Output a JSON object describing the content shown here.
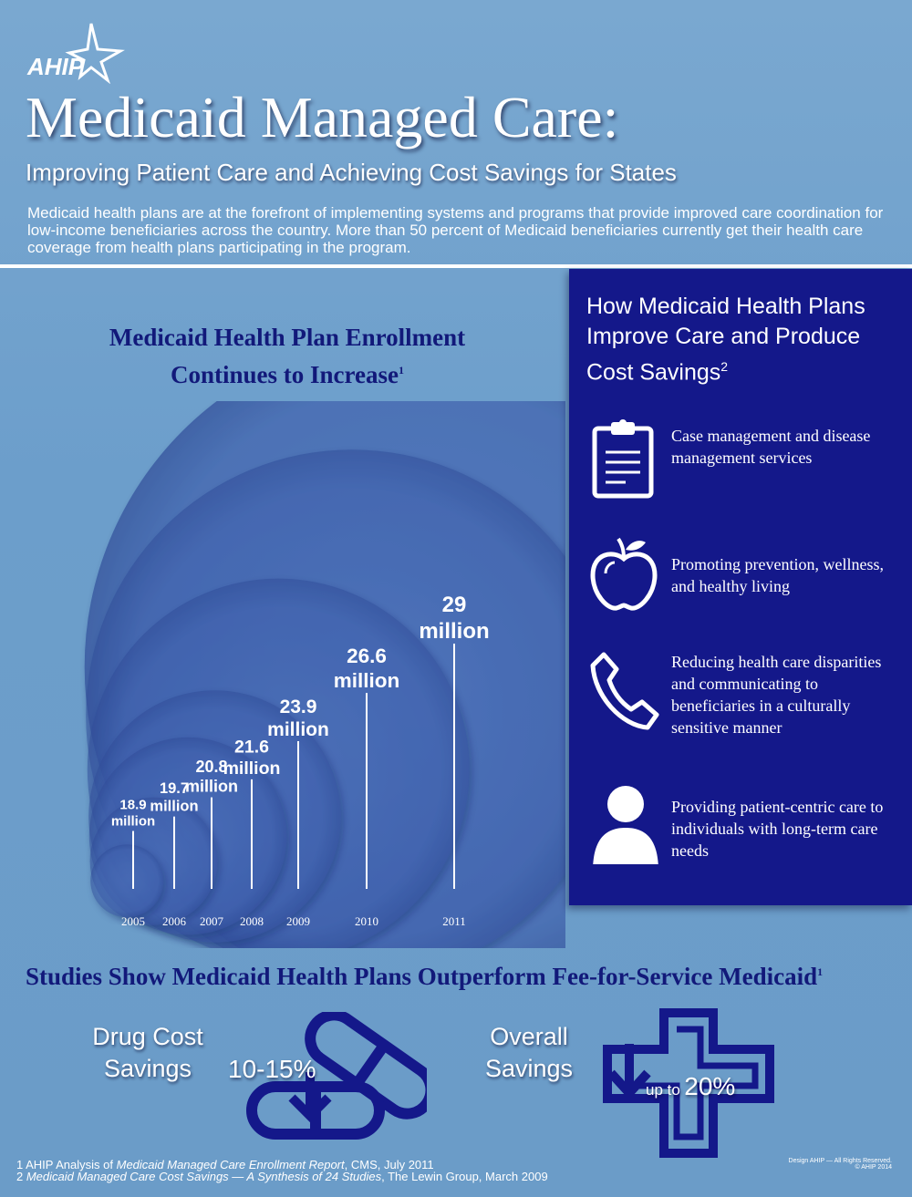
{
  "brand": {
    "logo_text": "AHIP"
  },
  "header": {
    "title": "Medicaid Managed Care:",
    "subtitle": "Improving Patient Care and Achieving Cost Savings for States",
    "intro": "Medicaid health plans are at the forefront of implementing systems and programs that provide improved care coordination for low-income beneficiaries across the country. More than 50 percent of Medicaid beneficiaries currently get their health care coverage from health plans participating in the program."
  },
  "enrollment": {
    "title_line1": "Medicaid Health Plan Enrollment",
    "title_line2": "Continues to Increase",
    "title_sup": "1"
  },
  "chart_data": {
    "type": "bar",
    "title": "Medicaid Health Plan Enrollment Continues to Increase",
    "categories": [
      "2005",
      "2006",
      "2007",
      "2008",
      "2009",
      "2010",
      "2011"
    ],
    "values": [
      18.9,
      19.7,
      20.8,
      21.6,
      23.9,
      26.6,
      29
    ],
    "value_labels": [
      {
        "value": "18.9",
        "unit": "million"
      },
      {
        "value": "19.7",
        "unit": "million"
      },
      {
        "value": "20.8",
        "unit": "million"
      },
      {
        "value": "21.6",
        "unit": "million"
      },
      {
        "value": "23.9",
        "unit": "million"
      },
      {
        "value": "26.6",
        "unit": "million"
      },
      {
        "value": "29",
        "unit": "million"
      }
    ],
    "xlabel": "",
    "ylabel": ""
  },
  "panel": {
    "title": "How Medicaid Health Plans Improve Care and Produce Cost Savings",
    "title_sup": "2",
    "items": [
      {
        "icon": "clipboard-icon",
        "text": "Case management and disease management services"
      },
      {
        "icon": "apple-icon",
        "text": "Promoting prevention, wellness, and healthy living"
      },
      {
        "icon": "phone-icon",
        "text": "Reducing health care disparities and communicating to beneficiaries in a culturally sensitive manner"
      },
      {
        "icon": "person-icon",
        "text": "Providing patient-centric care to individuals with long-term care needs"
      }
    ]
  },
  "studies": {
    "title": "Studies Show Medicaid Health Plans Outperform Fee-for-Service Medicaid",
    "title_sup": "1",
    "drug": {
      "label_line1": "Drug Cost",
      "label_line2": "Savings",
      "value": "10-15%",
      "icon": "pill-icon"
    },
    "overall": {
      "label_line1": "Overall",
      "label_line2": "Savings",
      "prefix": "up to",
      "value": "20%",
      "icon": "medical-cross-icon"
    }
  },
  "footnotes": {
    "note1_pre": "1 AHIP Analysis of ",
    "note1_italic": "Medicaid Managed Care Enrollment Report",
    "note1_post": ", CMS, July 2011",
    "note2_pre": "2 ",
    "note2_italic": "Medicaid Managed Care Cost Savings — A Synthesis of 24 Studies",
    "note2_post": ", The Lewin Group, March 2009",
    "credit_line1": "Design AHIP — All Rights Reserved.",
    "credit_line2": "© AHIP 2014"
  },
  "colors": {
    "background": "#6f9fc9",
    "navy": "#14188a",
    "title_navy": "#12197a",
    "white": "#ffffff"
  }
}
